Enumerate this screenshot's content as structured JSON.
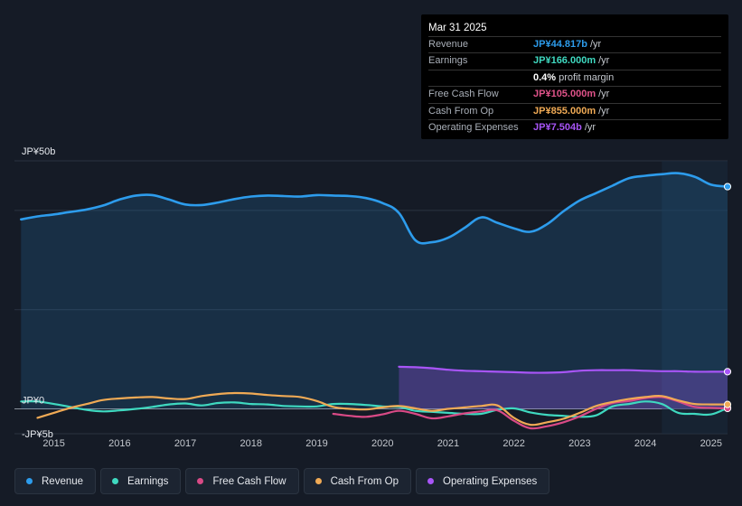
{
  "tooltip": {
    "date": "Mar 31 2025",
    "rows": [
      {
        "label": "Revenue",
        "value": "JP¥44.817b",
        "suffix": "/yr",
        "color": "#2d9cec"
      },
      {
        "label": "Earnings",
        "value": "JP¥166.000m",
        "suffix": "/yr",
        "color": "#3fd9c0"
      },
      {
        "label": "",
        "value": "0.4%",
        "suffix": "profit margin",
        "color": "#ffffff"
      },
      {
        "label": "Free Cash Flow",
        "value": "JP¥105.000m",
        "suffix": "/yr",
        "color": "#e0538a"
      },
      {
        "label": "Cash From Op",
        "value": "JP¥855.000m",
        "suffix": "/yr",
        "color": "#f0aa55"
      },
      {
        "label": "Operating Expenses",
        "value": "JP¥7.504b",
        "suffix": "/yr",
        "color": "#a855f7"
      }
    ]
  },
  "legend": [
    {
      "label": "Revenue",
      "color": "#2d9cec"
    },
    {
      "label": "Earnings",
      "color": "#3fd9c0"
    },
    {
      "label": "Free Cash Flow",
      "color": "#d94a86"
    },
    {
      "label": "Cash From Op",
      "color": "#f0aa55"
    },
    {
      "label": "Operating Expenses",
      "color": "#a855f7"
    }
  ],
  "chart_data": {
    "type": "area",
    "title": "",
    "currency": "JP¥",
    "y_tick_labels": [
      {
        "value": 50,
        "label": "JP¥50b"
      },
      {
        "value": 0,
        "label": "JP¥0"
      },
      {
        "value": -5,
        "label": "-JP¥5b"
      }
    ],
    "ylim": [
      -5,
      50
    ],
    "xlim": [
      2014.4,
      2025.25
    ],
    "x_ticks": [
      "2015",
      "2016",
      "2017",
      "2018",
      "2019",
      "2020",
      "2021",
      "2022",
      "2023",
      "2024",
      "2025"
    ],
    "highlight_from": 2024.25,
    "series": [
      {
        "name": "Revenue",
        "color": "#2d9cec",
        "fill": true,
        "x": [
          2014.5,
          2014.75,
          2015.0,
          2015.25,
          2015.5,
          2015.75,
          2016.0,
          2016.25,
          2016.5,
          2016.75,
          2017.0,
          2017.25,
          2017.5,
          2017.75,
          2018.0,
          2018.25,
          2018.5,
          2018.75,
          2019.0,
          2019.25,
          2019.5,
          2019.75,
          2020.0,
          2020.25,
          2020.5,
          2020.75,
          2021.0,
          2021.25,
          2021.5,
          2021.75,
          2022.0,
          2022.25,
          2022.5,
          2022.75,
          2023.0,
          2023.25,
          2023.5,
          2023.75,
          2024.0,
          2024.25,
          2024.5,
          2024.75,
          2025.0,
          2025.25
        ],
        "values": [
          38.2,
          38.8,
          39.2,
          39.7,
          40.2,
          41.0,
          42.2,
          43.0,
          43.1,
          42.2,
          41.2,
          41.1,
          41.6,
          42.3,
          42.8,
          43.0,
          42.9,
          42.8,
          43.1,
          43.0,
          42.9,
          42.5,
          41.5,
          39.5,
          34.0,
          33.6,
          34.5,
          36.5,
          38.6,
          37.5,
          36.4,
          35.7,
          37.2,
          39.8,
          42.0,
          43.5,
          45.0,
          46.5,
          47.0,
          47.3,
          47.5,
          46.8,
          45.2,
          44.8
        ]
      },
      {
        "name": "Operating Expenses",
        "color": "#a855f7",
        "fill": true,
        "x": [
          2020.25,
          2020.5,
          2020.75,
          2021.0,
          2021.25,
          2021.5,
          2021.75,
          2022.0,
          2022.25,
          2022.5,
          2022.75,
          2023.0,
          2023.25,
          2023.5,
          2023.75,
          2024.0,
          2024.25,
          2024.5,
          2024.75,
          2025.0,
          2025.25
        ],
        "values": [
          8.5,
          8.4,
          8.2,
          7.9,
          7.7,
          7.6,
          7.5,
          7.4,
          7.3,
          7.3,
          7.4,
          7.7,
          7.8,
          7.8,
          7.8,
          7.7,
          7.6,
          7.6,
          7.5,
          7.5,
          7.5
        ]
      },
      {
        "name": "Earnings",
        "color": "#3fd9c0",
        "fill": false,
        "x": [
          2014.5,
          2014.75,
          2015.0,
          2015.25,
          2015.5,
          2015.75,
          2016.0,
          2016.25,
          2016.5,
          2016.75,
          2017.0,
          2017.25,
          2017.5,
          2017.75,
          2018.0,
          2018.25,
          2018.5,
          2018.75,
          2019.0,
          2019.25,
          2019.5,
          2019.75,
          2020.0,
          2020.25,
          2020.5,
          2020.75,
          2021.0,
          2021.25,
          2021.5,
          2021.75,
          2022.0,
          2022.25,
          2022.5,
          2022.75,
          2023.0,
          2023.25,
          2023.5,
          2023.75,
          2024.0,
          2024.25,
          2024.5,
          2024.75,
          2025.0,
          2025.25
        ],
        "values": [
          1.5,
          1.5,
          1.0,
          0.4,
          -0.2,
          -0.5,
          -0.3,
          0.0,
          0.4,
          0.9,
          1.1,
          0.7,
          1.2,
          1.3,
          1.0,
          0.9,
          0.6,
          0.5,
          0.5,
          1.0,
          1.0,
          0.8,
          0.5,
          0.4,
          -0.4,
          -0.6,
          -0.8,
          -1.0,
          -1.0,
          -0.2,
          0.1,
          -0.7,
          -1.2,
          -1.4,
          -1.6,
          -1.3,
          0.5,
          1.0,
          1.5,
          1.0,
          -0.8,
          -1.0,
          -1.1,
          0.2
        ]
      },
      {
        "name": "Free Cash Flow",
        "color": "#d94a86",
        "fill": false,
        "x": [
          2019.25,
          2019.5,
          2019.75,
          2020.0,
          2020.25,
          2020.5,
          2020.75,
          2021.0,
          2021.25,
          2021.5,
          2021.75,
          2022.0,
          2022.25,
          2022.5,
          2022.75,
          2023.0,
          2023.25,
          2023.5,
          2023.75,
          2024.0,
          2024.25,
          2024.5,
          2024.75,
          2025.0,
          2025.25
        ],
        "values": [
          -1.0,
          -1.4,
          -1.6,
          -1.1,
          -0.4,
          -1.0,
          -1.9,
          -1.5,
          -0.9,
          -0.5,
          -0.3,
          -2.4,
          -3.9,
          -3.5,
          -2.7,
          -1.5,
          0.0,
          1.2,
          1.6,
          2.2,
          2.4,
          1.5,
          0.4,
          0.2,
          0.1
        ]
      },
      {
        "name": "Cash From Op",
        "color": "#f0aa55",
        "fill": false,
        "x": [
          2014.75,
          2015.0,
          2015.25,
          2015.5,
          2015.75,
          2016.0,
          2016.25,
          2016.5,
          2016.75,
          2017.0,
          2017.25,
          2017.5,
          2017.75,
          2018.0,
          2018.25,
          2018.5,
          2018.75,
          2019.0,
          2019.25,
          2019.5,
          2019.75,
          2020.0,
          2020.25,
          2020.5,
          2020.75,
          2021.0,
          2021.25,
          2021.5,
          2021.75,
          2022.0,
          2022.25,
          2022.5,
          2022.75,
          2023.0,
          2023.25,
          2023.5,
          2023.75,
          2024.0,
          2024.25,
          2024.5,
          2024.75,
          2025.0,
          2025.25
        ],
        "values": [
          -1.8,
          -0.8,
          0.2,
          1.0,
          1.8,
          2.1,
          2.3,
          2.4,
          2.1,
          2.0,
          2.6,
          3.0,
          3.2,
          3.1,
          2.8,
          2.6,
          2.4,
          1.6,
          0.4,
          0.0,
          -0.1,
          0.3,
          0.6,
          0.1,
          -0.4,
          0.0,
          0.3,
          0.6,
          0.7,
          -1.8,
          -3.2,
          -2.7,
          -2.0,
          -0.8,
          0.6,
          1.4,
          2.0,
          2.4,
          2.6,
          1.7,
          1.0,
          0.9,
          0.9
        ]
      }
    ]
  }
}
